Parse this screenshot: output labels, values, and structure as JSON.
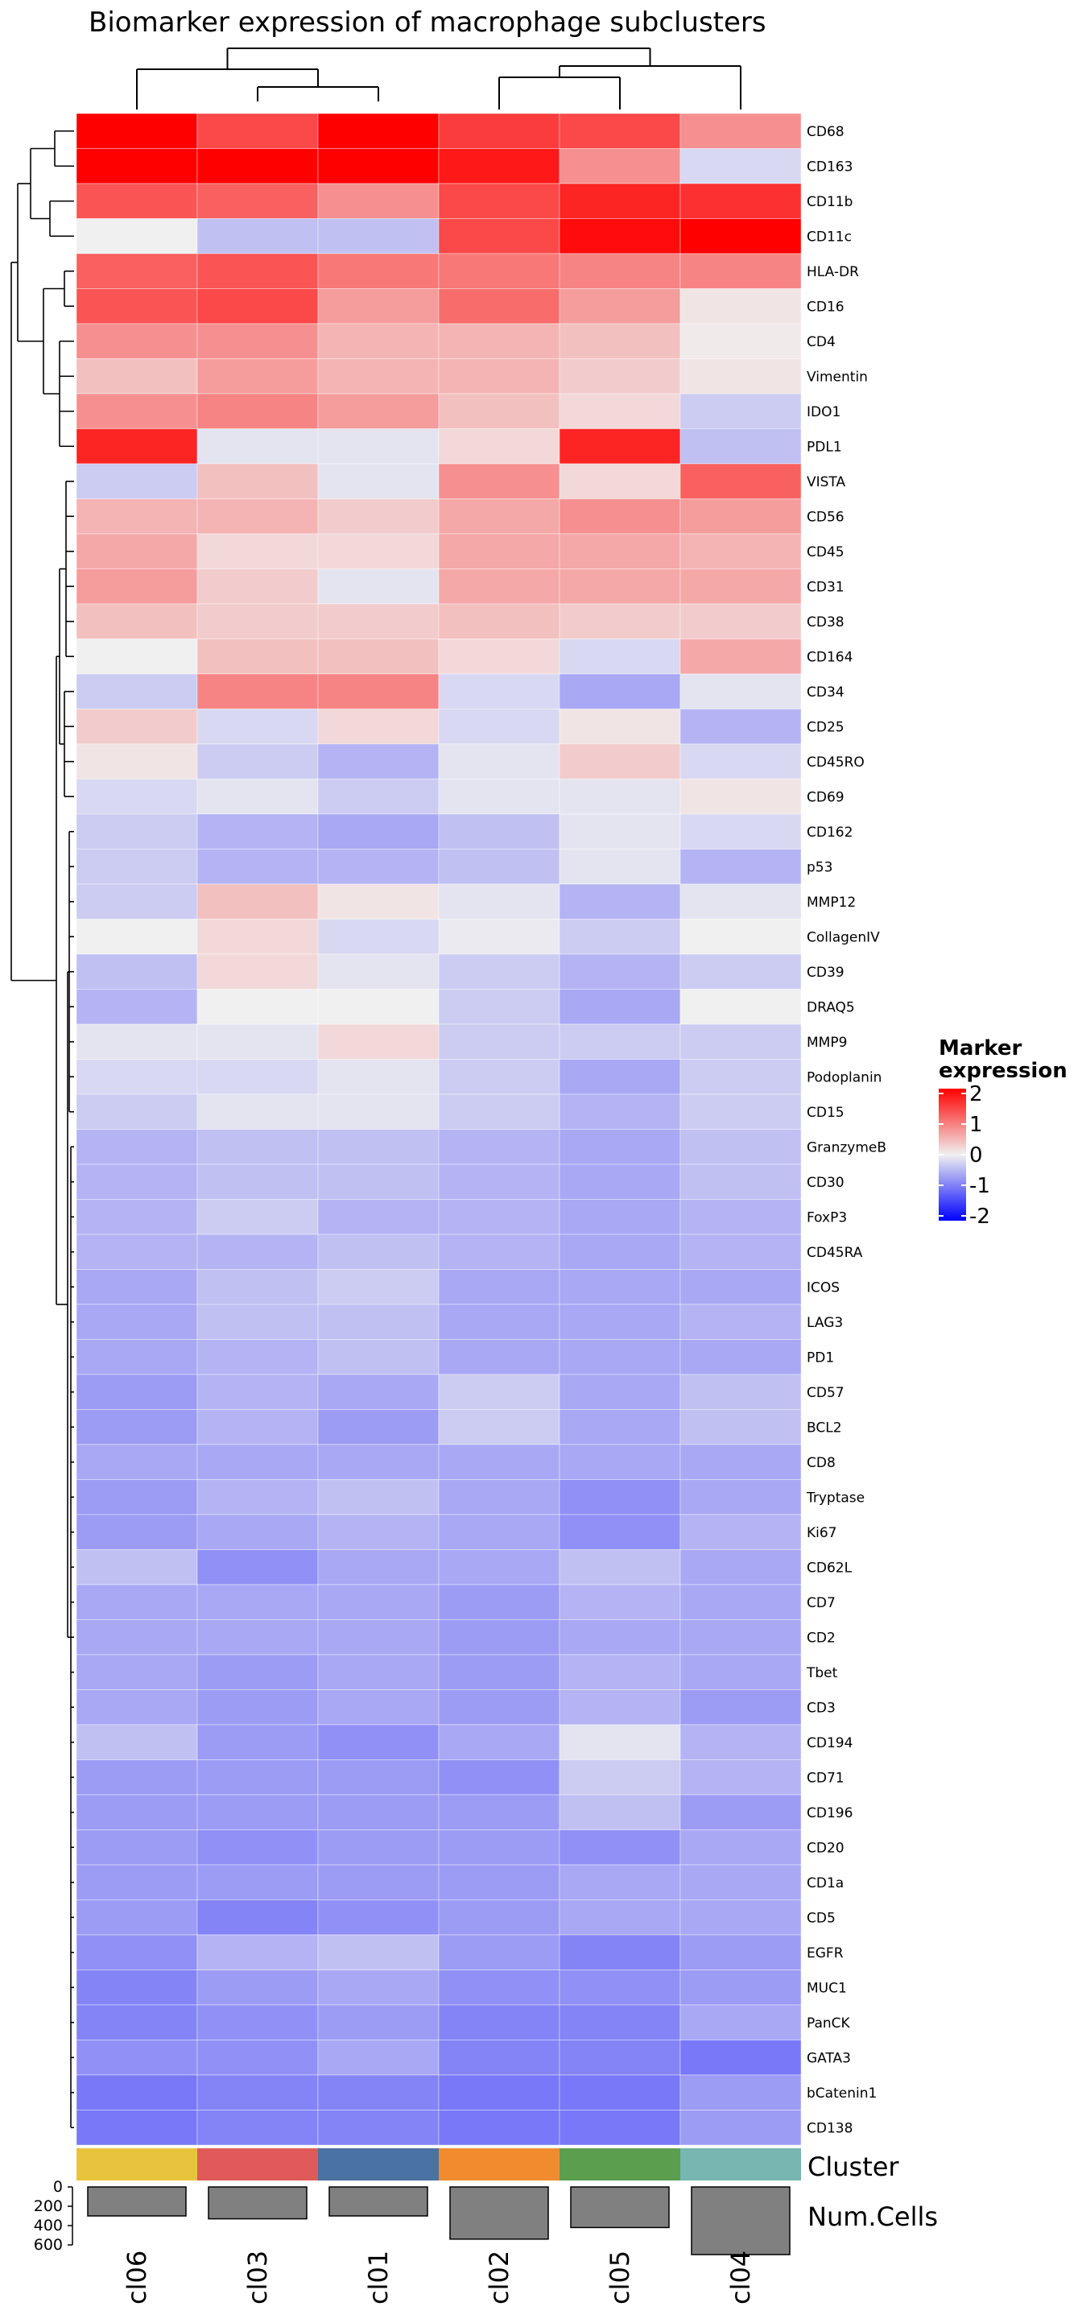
{
  "chart_data": {
    "type": "heatmap",
    "title": "Biomarker expression of macrophage subclusters",
    "columns": [
      "cl06",
      "cl03",
      "cl01",
      "cl02",
      "cl05",
      "cl04"
    ],
    "rows": [
      "CD68",
      "CD163",
      "CD11b",
      "CD11c",
      "HLA-DR",
      "CD16",
      "CD4",
      "Vimentin",
      "IDO1",
      "PDL1",
      "VISTA",
      "CD56",
      "CD45",
      "CD31",
      "CD38",
      "CD164",
      "CD34",
      "CD25",
      "CD45RO",
      "CD69",
      "CD162",
      "p53",
      "MMP12",
      "CollagenIV",
      "CD39",
      "DRAQ5",
      "MMP9",
      "Podoplanin",
      "CD15",
      "GranzymeB",
      "CD30",
      "FoxP3",
      "CD45RA",
      "ICOS",
      "LAG3",
      "PD1",
      "CD57",
      "BCL2",
      "CD8",
      "Tryptase",
      "Ki67",
      "CD62L",
      "CD7",
      "CD2",
      "Tbet",
      "CD3",
      "CD194",
      "CD71",
      "CD196",
      "CD20",
      "CD1a",
      "CD5",
      "EGFR",
      "MUC1",
      "PanCK",
      "GATA3",
      "bCatenin1",
      "CD138"
    ],
    "values": [
      [
        2.1,
        1.4,
        2.1,
        1.5,
        1.4,
        0.8
      ],
      [
        2.1,
        2.1,
        2.1,
        1.8,
        0.8,
        -0.2
      ],
      [
        1.3,
        1.2,
        0.8,
        1.4,
        1.7,
        1.6
      ],
      [
        0.0,
        -0.4,
        -0.4,
        1.4,
        1.9,
        2.0
      ],
      [
        1.2,
        1.3,
        1.0,
        1.0,
        0.9,
        0.9
      ],
      [
        1.3,
        1.4,
        0.7,
        1.1,
        0.7,
        0.1
      ],
      [
        0.8,
        0.8,
        0.5,
        0.5,
        0.4,
        0.05
      ],
      [
        0.4,
        0.7,
        0.5,
        0.5,
        0.3,
        0.1
      ],
      [
        0.8,
        0.9,
        0.7,
        0.4,
        0.2,
        -0.3
      ],
      [
        1.7,
        -0.1,
        -0.1,
        0.2,
        1.7,
        -0.4
      ],
      [
        -0.3,
        0.4,
        -0.1,
        0.8,
        0.2,
        1.2
      ],
      [
        0.5,
        0.5,
        0.3,
        0.6,
        0.8,
        0.7
      ],
      [
        0.6,
        0.2,
        0.2,
        0.6,
        0.6,
        0.5
      ],
      [
        0.7,
        0.3,
        -0.1,
        0.6,
        0.6,
        0.6
      ],
      [
        0.4,
        0.3,
        0.3,
        0.4,
        0.3,
        0.3
      ],
      [
        0.0,
        0.4,
        0.4,
        0.2,
        -0.2,
        0.6
      ],
      [
        -0.3,
        0.9,
        0.9,
        -0.2,
        -0.6,
        -0.1
      ],
      [
        0.3,
        -0.2,
        0.2,
        -0.2,
        0.1,
        -0.5
      ],
      [
        0.1,
        -0.3,
        -0.5,
        -0.1,
        0.3,
        -0.2
      ],
      [
        -0.2,
        -0.1,
        -0.3,
        -0.1,
        -0.1,
        0.1
      ],
      [
        -0.3,
        -0.5,
        -0.6,
        -0.4,
        -0.1,
        -0.2
      ],
      [
        -0.3,
        -0.5,
        -0.5,
        -0.4,
        -0.1,
        -0.5
      ],
      [
        -0.3,
        0.4,
        0.1,
        -0.1,
        -0.5,
        -0.1
      ],
      [
        0.0,
        0.2,
        -0.2,
        -0.05,
        -0.3,
        0.0
      ],
      [
        -0.4,
        0.2,
        -0.1,
        -0.3,
        -0.5,
        -0.3
      ],
      [
        -0.5,
        0.0,
        0.0,
        -0.3,
        -0.6,
        0.0
      ],
      [
        -0.1,
        -0.1,
        0.2,
        -0.3,
        -0.3,
        -0.3
      ],
      [
        -0.2,
        -0.2,
        -0.1,
        -0.3,
        -0.6,
        -0.3
      ],
      [
        -0.3,
        -0.1,
        -0.1,
        -0.3,
        -0.5,
        -0.3
      ],
      [
        -0.5,
        -0.4,
        -0.4,
        -0.5,
        -0.6,
        -0.4
      ],
      [
        -0.5,
        -0.4,
        -0.4,
        -0.5,
        -0.6,
        -0.4
      ],
      [
        -0.5,
        -0.3,
        -0.5,
        -0.5,
        -0.6,
        -0.5
      ],
      [
        -0.5,
        -0.5,
        -0.4,
        -0.5,
        -0.6,
        -0.5
      ],
      [
        -0.6,
        -0.4,
        -0.3,
        -0.6,
        -0.6,
        -0.6
      ],
      [
        -0.6,
        -0.4,
        -0.4,
        -0.6,
        -0.6,
        -0.5
      ],
      [
        -0.6,
        -0.5,
        -0.4,
        -0.6,
        -0.6,
        -0.6
      ],
      [
        -0.7,
        -0.5,
        -0.6,
        -0.3,
        -0.6,
        -0.4
      ],
      [
        -0.7,
        -0.5,
        -0.7,
        -0.3,
        -0.6,
        -0.4
      ],
      [
        -0.6,
        -0.6,
        -0.6,
        -0.6,
        -0.6,
        -0.6
      ],
      [
        -0.7,
        -0.5,
        -0.4,
        -0.6,
        -0.8,
        -0.6
      ],
      [
        -0.7,
        -0.6,
        -0.5,
        -0.6,
        -0.8,
        -0.5
      ],
      [
        -0.4,
        -0.8,
        -0.6,
        -0.6,
        -0.4,
        -0.6
      ],
      [
        -0.6,
        -0.6,
        -0.6,
        -0.7,
        -0.5,
        -0.6
      ],
      [
        -0.6,
        -0.6,
        -0.6,
        -0.7,
        -0.6,
        -0.6
      ],
      [
        -0.6,
        -0.7,
        -0.6,
        -0.7,
        -0.5,
        -0.6
      ],
      [
        -0.6,
        -0.7,
        -0.6,
        -0.7,
        -0.5,
        -0.7
      ],
      [
        -0.4,
        -0.7,
        -0.8,
        -0.6,
        -0.1,
        -0.5
      ],
      [
        -0.7,
        -0.7,
        -0.7,
        -0.8,
        -0.3,
        -0.5
      ],
      [
        -0.7,
        -0.7,
        -0.7,
        -0.7,
        -0.4,
        -0.7
      ],
      [
        -0.7,
        -0.8,
        -0.7,
        -0.7,
        -0.8,
        -0.6
      ],
      [
        -0.7,
        -0.7,
        -0.7,
        -0.7,
        -0.6,
        -0.6
      ],
      [
        -0.7,
        -0.9,
        -0.8,
        -0.7,
        -0.6,
        -0.6
      ],
      [
        -0.8,
        -0.5,
        -0.4,
        -0.7,
        -0.9,
        -0.7
      ],
      [
        -0.9,
        -0.7,
        -0.6,
        -0.8,
        -0.8,
        -0.7
      ],
      [
        -0.9,
        -0.8,
        -0.7,
        -0.9,
        -0.9,
        -0.6
      ],
      [
        -0.8,
        -0.8,
        -0.6,
        -0.9,
        -0.9,
        -1.0
      ],
      [
        -1.0,
        -0.9,
        -0.9,
        -1.0,
        -1.0,
        -0.7
      ],
      [
        -1.0,
        -0.9,
        -0.9,
        -1.0,
        -1.0,
        -0.7
      ]
    ],
    "color_scale": {
      "min": -2,
      "mid": 0,
      "max": 2,
      "low_color": "#0000ff",
      "mid_color": "#f0f0f0",
      "high_color": "#ff0000"
    },
    "legend": {
      "title_line1": "Marker",
      "title_line2": "expression",
      "ticks": [
        "2",
        "1",
        "0",
        "-1",
        "-2"
      ],
      "tick_values": [
        2,
        1,
        0,
        -1,
        -2
      ],
      "placement": "right"
    },
    "cluster_annotation": {
      "label": "Cluster",
      "colors": [
        "#e8c43e",
        "#e05a5a",
        "#4a72a3",
        "#f08c2e",
        "#5a9e4e",
        "#76b7b2"
      ]
    },
    "num_cells_annotation": {
      "label": "Num.Cells",
      "axis_ticks": [
        "0",
        "200",
        "400",
        "600"
      ],
      "axis_values": [
        0,
        200,
        400,
        600
      ],
      "values": [
        300,
        330,
        300,
        540,
        420,
        700
      ],
      "bar_color": "#808080"
    }
  }
}
